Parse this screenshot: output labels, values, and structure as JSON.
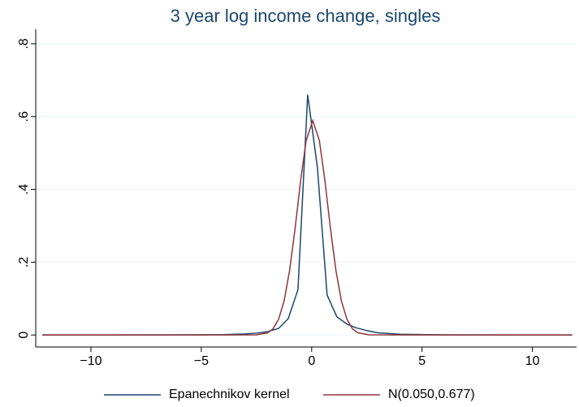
{
  "chart_data": {
    "type": "line",
    "title": "3 year log income change, singles",
    "xlim": [
      -12.5,
      12
    ],
    "ylim": [
      -0.033,
      0.84
    ],
    "xticks": [
      {
        "value": -10,
        "label": "−10"
      },
      {
        "value": -5,
        "label": "−5"
      },
      0,
      5,
      10
    ],
    "yticks": [
      0,
      {
        "value": 0.2,
        "label": ".2"
      },
      {
        "value": 0.4,
        "label": ".4"
      },
      {
        "value": 0.6,
        "label": ".6"
      },
      {
        "value": 0.8,
        "label": ".8"
      }
    ],
    "grid": true,
    "legend": "bottom",
    "series": [
      {
        "name": "Epanechnikov kernel",
        "color": "#1a476f",
        "x": [
          -12.2,
          -6,
          -4,
          -3,
          -2.5,
          -2,
          -1.5,
          -1.06,
          -0.62,
          -0.18,
          0.26,
          0.7,
          1.14,
          1.6,
          2,
          2.5,
          3,
          4,
          6,
          11.8
        ],
        "values": [
          0,
          0.0005,
          0.001,
          0.003,
          0.005,
          0.009,
          0.018,
          0.045,
          0.125,
          0.66,
          0.46,
          0.11,
          0.05,
          0.03,
          0.02,
          0.012,
          0.006,
          0.002,
          0.0005,
          0
        ]
      },
      {
        "name": "N(0.050,0.677)",
        "color": "#90353b",
        "x": [
          -12.2,
          -4,
          -2.5,
          -2,
          -1.75,
          -1.5,
          -1.25,
          -1,
          -0.75,
          -0.5,
          -0.25,
          0.05,
          0.35,
          0.6,
          0.85,
          1.1,
          1.35,
          1.6,
          1.85,
          2.1,
          2.6,
          4,
          11.8
        ],
        "values": [
          0,
          0,
          0.0005,
          0.006,
          0.017,
          0.043,
          0.093,
          0.177,
          0.293,
          0.424,
          0.534,
          0.589,
          0.534,
          0.424,
          0.293,
          0.177,
          0.093,
          0.043,
          0.017,
          0.006,
          0.0005,
          0,
          0
        ]
      }
    ]
  }
}
